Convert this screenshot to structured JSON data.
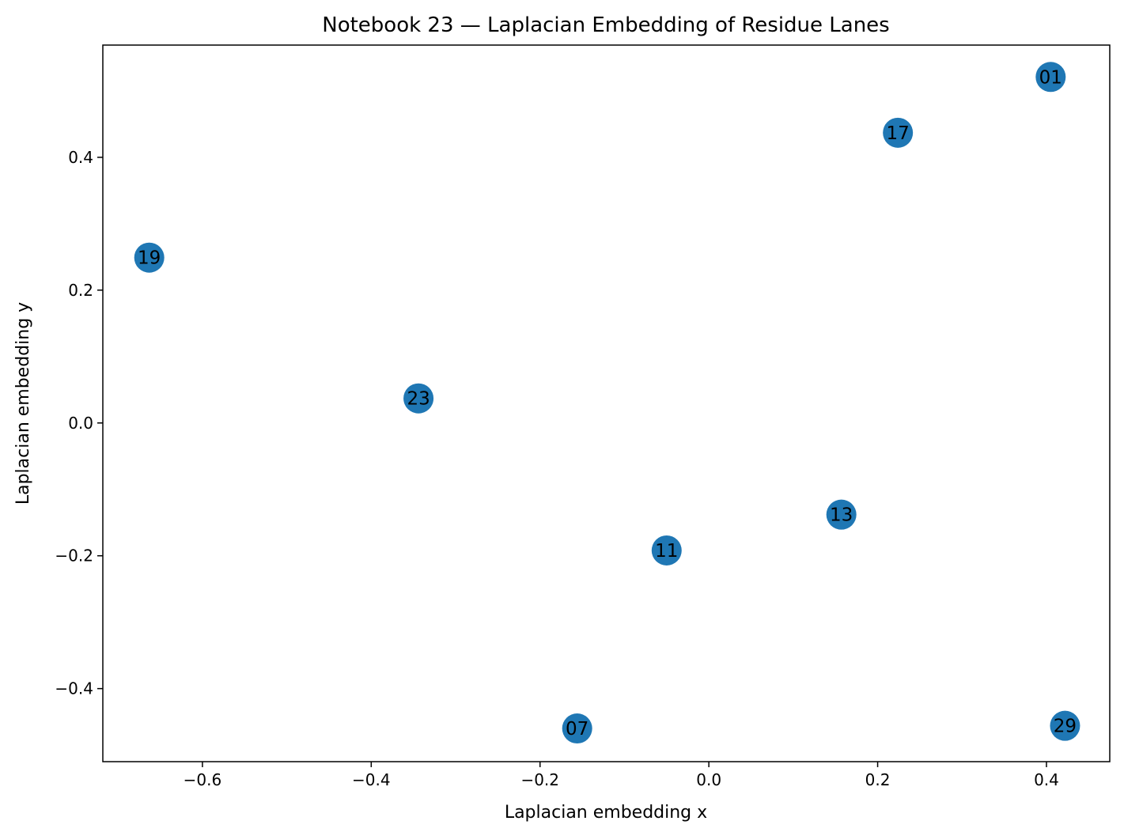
{
  "chart_data": {
    "type": "scatter",
    "title": "Notebook 23 — Laplacian Embedding of Residue Lanes",
    "x_label": "Laplacian embedding x",
    "y_label": "Laplacian embedding y",
    "labels": [
      "01",
      "17",
      "19",
      "23",
      "13",
      "11",
      "07",
      "29"
    ],
    "x": [
      0.405,
      0.224,
      -0.663,
      -0.344,
      0.157,
      -0.05,
      -0.156,
      0.422
    ],
    "y": [
      0.521,
      0.437,
      0.249,
      0.037,
      -0.138,
      -0.192,
      -0.46,
      -0.456
    ],
    "color": "#1f77b4",
    "xlim": [
      -0.718,
      0.475
    ],
    "ylim": [
      -0.51,
      0.569
    ],
    "xticks": [
      {
        "value": -0.6,
        "label": "−0.6"
      },
      {
        "value": -0.4,
        "label": "−0.4"
      },
      {
        "value": -0.2,
        "label": "−0.2"
      },
      {
        "value": 0.0,
        "label": "0.0"
      },
      0.2,
      0.4
    ],
    "yticks": [
      {
        "value": -0.4,
        "label": "−0.4"
      },
      {
        "value": -0.2,
        "label": "−0.2"
      },
      {
        "value": 0.0,
        "label": "0.0"
      },
      0.2,
      0.4
    ],
    "grid": false
  }
}
